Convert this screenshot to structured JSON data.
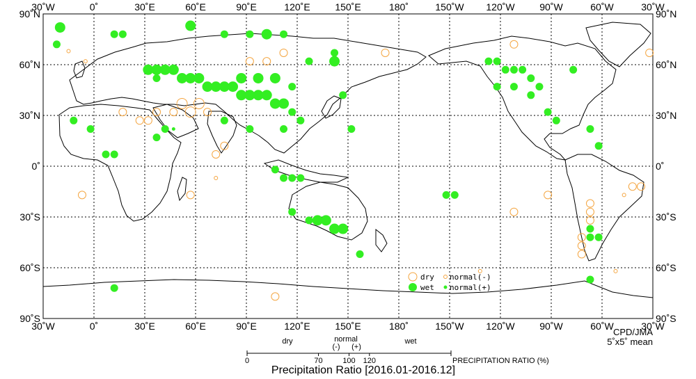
{
  "title": "Precipitation Ratio [2016.01-2016.12]",
  "credit_line1": "CPD/JMA",
  "credit_line2": "5˚x5˚ mean",
  "lat_labels": [
    "90˚N",
    "60˚N",
    "30˚N",
    "0˚",
    "30˚S",
    "60˚S",
    "90˚S"
  ],
  "lat_values": [
    90,
    60,
    30,
    0,
    -30,
    -60,
    -90
  ],
  "lon_labels": [
    "30˚W",
    "0˚",
    "30˚E",
    "60˚E",
    "90˚E",
    "120˚E",
    "150˚E",
    "180˚",
    "150˚W",
    "120˚W",
    "90˚W",
    "60˚W",
    "30˚W"
  ],
  "lon_values": [
    -30,
    0,
    30,
    60,
    90,
    120,
    150,
    180,
    210,
    240,
    270,
    300,
    330
  ],
  "legend": {
    "dry": "dry",
    "wet": "wet",
    "normal_minus": "normal(-)",
    "normal_plus": "normal(+)"
  },
  "scale": {
    "dry_label": "dry",
    "normal_label": "normal",
    "minus_label": "(-)",
    "plus_label": "(+)",
    "wet_label": "wet",
    "ticks": [
      "0",
      "70",
      "100",
      "120"
    ],
    "tick_values": [
      0,
      70,
      100,
      120
    ],
    "axis_title": "PRECIPITATION RATIO  (%)"
  },
  "colors": {
    "dry": "#f4a540",
    "wet": "#33ee22",
    "land_outline": "#000000",
    "grid": "#000000"
  },
  "stations": [
    {
      "lon": -20,
      "lat": 82,
      "cat": "wet",
      "size": 3
    },
    {
      "lon": -22,
      "lat": 72,
      "cat": "wet",
      "size": 2
    },
    {
      "lon": -15,
      "lat": 68,
      "cat": "dry",
      "size": 1
    },
    {
      "lon": -5,
      "lat": 62,
      "cat": "dry",
      "size": 1
    },
    {
      "lon": 12,
      "lat": 78,
      "cat": "wet",
      "size": 2
    },
    {
      "lon": 17,
      "lat": 78,
      "cat": "wet",
      "size": 2
    },
    {
      "lon": 57,
      "lat": 83,
      "cat": "wet",
      "size": 3
    },
    {
      "lon": 77,
      "lat": 78,
      "cat": "wet",
      "size": 2
    },
    {
      "lon": 92,
      "lat": 78,
      "cat": "wet",
      "size": 2
    },
    {
      "lon": 102,
      "lat": 78,
      "cat": "wet",
      "size": 3
    },
    {
      "lon": 112,
      "lat": 78,
      "cat": "wet",
      "size": 2
    },
    {
      "lon": 47,
      "lat": 57,
      "cat": "wet",
      "size": 3
    },
    {
      "lon": 52,
      "lat": 52,
      "cat": "wet",
      "size": 3
    },
    {
      "lon": 57,
      "lat": 52,
      "cat": "wet",
      "size": 3
    },
    {
      "lon": 62,
      "lat": 52,
      "cat": "wet",
      "size": 3
    },
    {
      "lon": 67,
      "lat": 47,
      "cat": "wet",
      "size": 3
    },
    {
      "lon": 72,
      "lat": 47,
      "cat": "wet",
      "size": 3
    },
    {
      "lon": 77,
      "lat": 47,
      "cat": "wet",
      "size": 3
    },
    {
      "lon": 82,
      "lat": 47,
      "cat": "wet",
      "size": 3
    },
    {
      "lon": 87,
      "lat": 42,
      "cat": "wet",
      "size": 3
    },
    {
      "lon": 92,
      "lat": 42,
      "cat": "wet",
      "size": 3
    },
    {
      "lon": 97,
      "lat": 42,
      "cat": "wet",
      "size": 3
    },
    {
      "lon": 102,
      "lat": 42,
      "cat": "wet",
      "size": 3
    },
    {
      "lon": 107,
      "lat": 37,
      "cat": "wet",
      "size": 3
    },
    {
      "lon": 112,
      "lat": 37,
      "cat": "wet",
      "size": 3
    },
    {
      "lon": 117,
      "lat": 32,
      "cat": "wet",
      "size": 2
    },
    {
      "lon": 122,
      "lat": 27,
      "cat": "wet",
      "size": 2
    },
    {
      "lon": 42,
      "lat": 57,
      "cat": "wet",
      "size": 3
    },
    {
      "lon": 37,
      "lat": 57,
      "cat": "wet",
      "size": 3
    },
    {
      "lon": 32,
      "lat": 57,
      "cat": "wet",
      "size": 3
    },
    {
      "lon": 37,
      "lat": 52,
      "cat": "wet",
      "size": 2
    },
    {
      "lon": 87,
      "lat": 52,
      "cat": "wet",
      "size": 3
    },
    {
      "lon": 97,
      "lat": 52,
      "cat": "wet",
      "size": 3
    },
    {
      "lon": 107,
      "lat": 52,
      "cat": "wet",
      "size": 3
    },
    {
      "lon": 117,
      "lat": 47,
      "cat": "wet",
      "size": 2
    },
    {
      "lon": 127,
      "lat": 62,
      "cat": "wet",
      "size": 2
    },
    {
      "lon": 142,
      "lat": 67,
      "cat": "wet",
      "size": 2
    },
    {
      "lon": 142,
      "lat": 62,
      "cat": "wet",
      "size": 3
    },
    {
      "lon": 147,
      "lat": 42,
      "cat": "wet",
      "size": 2
    },
    {
      "lon": 152,
      "lat": 22,
      "cat": "wet",
      "size": 2
    },
    {
      "lon": -2,
      "lat": 22,
      "cat": "wet",
      "size": 2
    },
    {
      "lon": -12,
      "lat": 27,
      "cat": "wet",
      "size": 2
    },
    {
      "lon": 7,
      "lat": 7,
      "cat": "wet",
      "size": 2
    },
    {
      "lon": 12,
      "lat": 7,
      "cat": "wet",
      "size": 2
    },
    {
      "lon": 37,
      "lat": 17,
      "cat": "wet",
      "size": 2
    },
    {
      "lon": 42,
      "lat": 22,
      "cat": "wet",
      "size": 2
    },
    {
      "lon": 47,
      "lat": 22,
      "cat": "wet",
      "size": 1
    },
    {
      "lon": 77,
      "lat": 27,
      "cat": "wet",
      "size": 2
    },
    {
      "lon": 92,
      "lat": 22,
      "cat": "wet",
      "size": 2
    },
    {
      "lon": 112,
      "lat": 22,
      "cat": "wet",
      "size": 2
    },
    {
      "lon": 107,
      "lat": -2,
      "cat": "wet",
      "size": 2
    },
    {
      "lon": 112,
      "lat": -7,
      "cat": "wet",
      "size": 2
    },
    {
      "lon": 117,
      "lat": -7,
      "cat": "wet",
      "size": 2
    },
    {
      "lon": 122,
      "lat": -7,
      "cat": "wet",
      "size": 2
    },
    {
      "lon": 127,
      "lat": -32,
      "cat": "wet",
      "size": 2
    },
    {
      "lon": 132,
      "lat": -32,
      "cat": "wet",
      "size": 3
    },
    {
      "lon": 137,
      "lat": -32,
      "cat": "wet",
      "size": 3
    },
    {
      "lon": 142,
      "lat": -37,
      "cat": "wet",
      "size": 3
    },
    {
      "lon": 147,
      "lat": -37,
      "cat": "wet",
      "size": 3
    },
    {
      "lon": 117,
      "lat": -27,
      "cat": "wet",
      "size": 2
    },
    {
      "lon": 157,
      "lat": -52,
      "cat": "wet",
      "size": 2
    },
    {
      "lon": -152,
      "lat": -17,
      "cat": "wet",
      "size": 2
    },
    {
      "lon": -147,
      "lat": -17,
      "cat": "wet",
      "size": 2
    },
    {
      "lon": -92,
      "lat": -17,
      "cat": "dry",
      "size": 2
    },
    {
      "lon": -112,
      "lat": -27,
      "cat": "dry",
      "size": 2
    },
    {
      "lon": -97,
      "lat": 47,
      "cat": "wet",
      "size": 2
    },
    {
      "lon": -102,
      "lat": 52,
      "cat": "wet",
      "size": 2
    },
    {
      "lon": -107,
      "lat": 57,
      "cat": "wet",
      "size": 2
    },
    {
      "lon": -112,
      "lat": 57,
      "cat": "wet",
      "size": 2
    },
    {
      "lon": -117,
      "lat": 57,
      "cat": "wet",
      "size": 2
    },
    {
      "lon": -122,
      "lat": 62,
      "cat": "wet",
      "size": 2
    },
    {
      "lon": -127,
      "lat": 62,
      "cat": "wet",
      "size": 2
    },
    {
      "lon": -122,
      "lat": 47,
      "cat": "wet",
      "size": 2
    },
    {
      "lon": -112,
      "lat": 47,
      "cat": "wet",
      "size": 2
    },
    {
      "lon": -102,
      "lat": 42,
      "cat": "wet",
      "size": 2
    },
    {
      "lon": -87,
      "lat": 27,
      "cat": "wet",
      "size": 2
    },
    {
      "lon": -92,
      "lat": 32,
      "cat": "wet",
      "size": 2
    },
    {
      "lon": -77,
      "lat": 57,
      "cat": "wet",
      "size": 2
    },
    {
      "lon": -67,
      "lat": 22,
      "cat": "wet",
      "size": 2
    },
    {
      "lon": -62,
      "lat": 12,
      "cat": "wet",
      "size": 2
    },
    {
      "lon": -67,
      "lat": -37,
      "cat": "wet",
      "size": 2
    },
    {
      "lon": -67,
      "lat": -42,
      "cat": "wet",
      "size": 2
    },
    {
      "lon": -62,
      "lat": -42,
      "cat": "wet",
      "size": 2
    },
    {
      "lon": -67,
      "lat": -67,
      "cat": "wet",
      "size": 2
    },
    {
      "lon": 12,
      "lat": -72,
      "cat": "wet",
      "size": 2
    },
    {
      "lon": 107,
      "lat": -77,
      "cat": "dry",
      "size": 2
    },
    {
      "lon": -7,
      "lat": -17,
      "cat": "dry",
      "size": 2
    },
    {
      "lon": 57,
      "lat": -17,
      "cat": "dry",
      "size": 2
    },
    {
      "lon": 72,
      "lat": -7,
      "cat": "dry",
      "size": 1
    },
    {
      "lon": 72,
      "lat": 7,
      "cat": "dry",
      "size": 2
    },
    {
      "lon": 62,
      "lat": 37,
      "cat": "dry",
      "size": 3
    },
    {
      "lon": 52,
      "lat": 37,
      "cat": "dry",
      "size": 3
    },
    {
      "lon": 57,
      "lat": 32,
      "cat": "dry",
      "size": 3
    },
    {
      "lon": 47,
      "lat": 32,
      "cat": "dry",
      "size": 2
    },
    {
      "lon": 67,
      "lat": 32,
      "cat": "dry",
      "size": 2
    },
    {
      "lon": 37,
      "lat": 32,
      "cat": "dry",
      "size": 2
    },
    {
      "lon": 32,
      "lat": 27,
      "cat": "dry",
      "size": 2
    },
    {
      "lon": 27,
      "lat": 27,
      "cat": "dry",
      "size": 2
    },
    {
      "lon": 17,
      "lat": 32,
      "cat": "dry",
      "size": 2
    },
    {
      "lon": 77,
      "lat": 12,
      "cat": "dry",
      "size": 2
    },
    {
      "lon": -32,
      "lat": 67,
      "cat": "dry",
      "size": 2
    },
    {
      "lon": 92,
      "lat": 62,
      "cat": "dry",
      "size": 2
    },
    {
      "lon": 102,
      "lat": 62,
      "cat": "dry",
      "size": 2
    },
    {
      "lon": 112,
      "lat": 67,
      "cat": "dry",
      "size": 2
    },
    {
      "lon": 172,
      "lat": 67,
      "cat": "dry",
      "size": 2
    },
    {
      "lon": -67,
      "lat": -22,
      "cat": "dry",
      "size": 2
    },
    {
      "lon": -67,
      "lat": -27,
      "cat": "dry",
      "size": 2
    },
    {
      "lon": -67,
      "lat": -32,
      "cat": "dry",
      "size": 2
    },
    {
      "lon": -72,
      "lat": -42,
      "cat": "dry",
      "size": 2
    },
    {
      "lon": -72,
      "lat": -47,
      "cat": "dry",
      "size": 2
    },
    {
      "lon": -72,
      "lat": -52,
      "cat": "dry",
      "size": 2
    },
    {
      "lon": -42,
      "lat": -12,
      "cat": "dry",
      "size": 2
    },
    {
      "lon": -37,
      "lat": -12,
      "cat": "dry",
      "size": 2
    },
    {
      "lon": -47,
      "lat": -17,
      "cat": "dry",
      "size": 1
    },
    {
      "lon": -112,
      "lat": 72,
      "cat": "dry",
      "size": 2
    },
    {
      "lon": -132,
      "lat": -62,
      "cat": "dry",
      "size": 1
    },
    {
      "lon": -52,
      "lat": -62,
      "cat": "dry",
      "size": 1
    }
  ]
}
